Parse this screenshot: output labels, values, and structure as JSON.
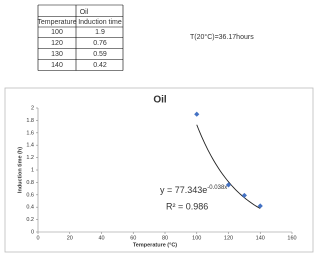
{
  "table": {
    "title": "Oil",
    "header": [
      "Temperature",
      "Induction time"
    ],
    "rows": [
      [
        100,
        1.9
      ],
      [
        120,
        0.76
      ],
      [
        130,
        0.59
      ],
      [
        140,
        0.42
      ]
    ]
  },
  "note": "T(20°C)=36.17hours",
  "chart_data": {
    "type": "scatter",
    "title": "Oil",
    "x_label": "Temperature (°C)",
    "y_label": "Induction time (h)",
    "x": [
      100,
      120,
      130,
      140
    ],
    "series": [
      {
        "name": "Oil",
        "color": "#4472c4",
        "values": [
          1.9,
          0.76,
          0.59,
          0.42
        ]
      }
    ],
    "xlim": [
      0,
      160
    ],
    "xticks": [
      0,
      20,
      40,
      60,
      80,
      100,
      120,
      140,
      160
    ],
    "ylim": [
      0,
      2
    ],
    "yticks": [
      0,
      0.2,
      0.4,
      0.6,
      0.8,
      1,
      1.2,
      1.4,
      1.6,
      1.8,
      2
    ],
    "trendline": {
      "a": 77.343,
      "b": -0.038,
      "equation": "y = 77.343e",
      "equation_exponent": "-0.038x",
      "r2_label": "R² = 0.986"
    }
  }
}
